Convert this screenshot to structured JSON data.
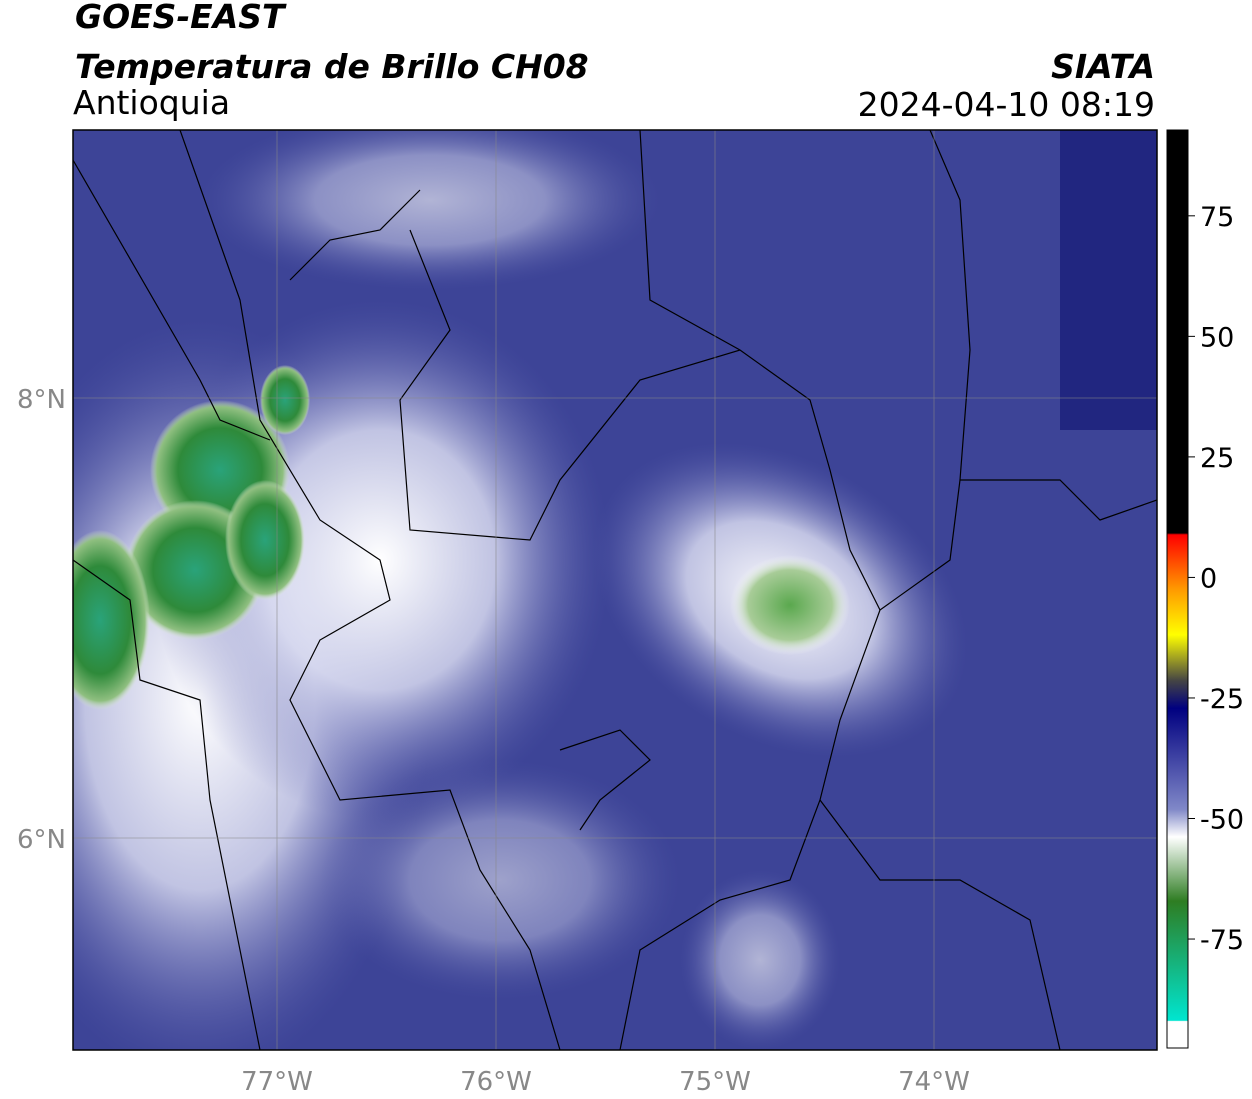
{
  "header": {
    "title": "GOES-EAST",
    "subtitle": "Temperatura de Brillo CH08",
    "region": "Antioquia",
    "source": "SIATA",
    "datetime": "2024-04-10 08:19"
  },
  "map": {
    "lat_labels": [
      "8°N",
      "6°N"
    ],
    "lon_labels": [
      "77°W",
      "76°W",
      "75°W",
      "74°W"
    ]
  },
  "colorbar": {
    "range": [
      -97.6,
      92.8
    ],
    "ticks": [
      75,
      50,
      25,
      0,
      -25,
      -50,
      -75
    ]
  }
}
